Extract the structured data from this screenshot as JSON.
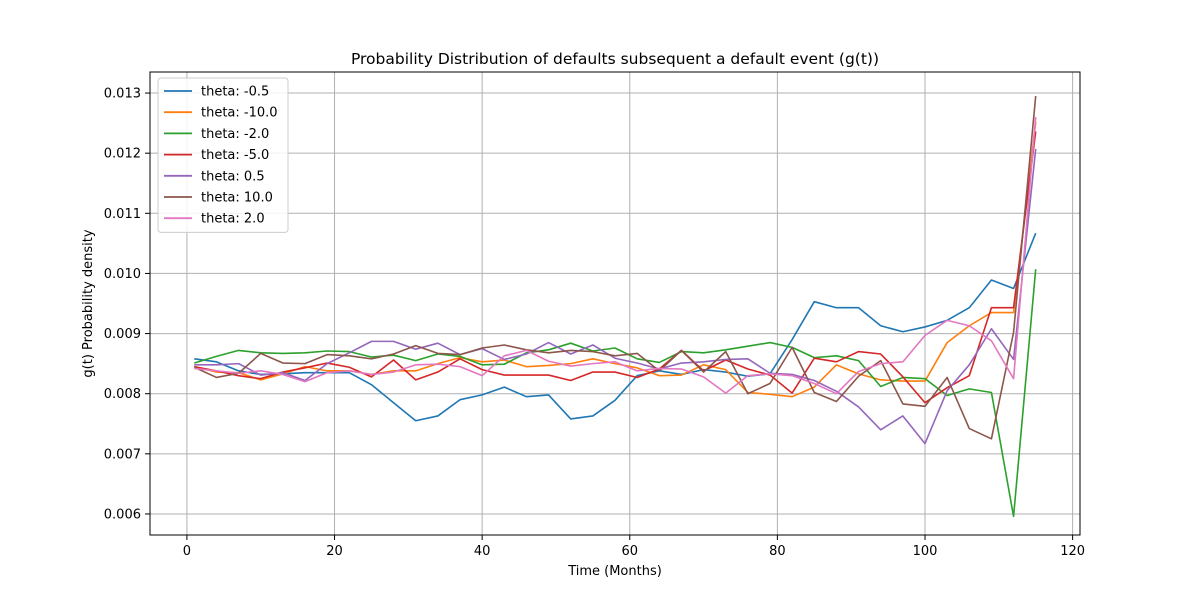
{
  "chart_data": {
    "type": "line",
    "title": "Probability Distribution of defaults subsequent a default event (g(t))",
    "xlabel": "Time (Months)",
    "ylabel": "g(t) Probability density",
    "xlim": [
      -5,
      121
    ],
    "ylim": [
      0.00565,
      0.01335
    ],
    "xticks": [
      0,
      20,
      40,
      60,
      80,
      100,
      120
    ],
    "yticks": [
      0.006,
      0.007,
      0.008,
      0.009,
      0.01,
      0.011,
      0.012,
      0.013
    ],
    "xtick_labels": [
      "0",
      "20",
      "40",
      "60",
      "80",
      "100",
      "120"
    ],
    "ytick_labels": [
      "0.006",
      "0.007",
      "0.008",
      "0.009",
      "0.010",
      "0.011",
      "0.012",
      "0.013"
    ],
    "grid": true,
    "legend_position": "top-left",
    "x": [
      1,
      4,
      7,
      10,
      13,
      16,
      19,
      22,
      25,
      28,
      31,
      34,
      37,
      40,
      43,
      46,
      49,
      52,
      55,
      58,
      61,
      64,
      67,
      70,
      73,
      76,
      79,
      82,
      85,
      88,
      91,
      94,
      97,
      100,
      103,
      106,
      109,
      112,
      115
    ],
    "series": [
      {
        "name": "theta: -0.5",
        "color": "#1f77b4",
        "values": [
          0.00858,
          0.00853,
          0.00838,
          0.00832,
          0.00833,
          0.00835,
          0.00835,
          0.00835,
          0.00815,
          0.00785,
          0.00755,
          0.00763,
          0.0079,
          0.00798,
          0.00811,
          0.00795,
          0.00798,
          0.00758,
          0.00763,
          0.00789,
          0.0083,
          0.00838,
          0.00832,
          0.0084,
          0.00836,
          0.00829,
          0.00833,
          0.0089,
          0.00953,
          0.00943,
          0.00943,
          0.00913,
          0.00903,
          0.00911,
          0.00922,
          0.00943,
          0.00989,
          0.00975,
          0.01067
        ]
      },
      {
        "name": "theta: -10.0",
        "color": "#ff7f0e",
        "values": [
          0.00845,
          0.00836,
          0.00835,
          0.00823,
          0.00833,
          0.00845,
          0.00838,
          0.00838,
          0.00832,
          0.00838,
          0.00838,
          0.0085,
          0.0086,
          0.00853,
          0.00856,
          0.00845,
          0.00847,
          0.0085,
          0.00858,
          0.0085,
          0.00843,
          0.0083,
          0.00831,
          0.00848,
          0.0084,
          0.00802,
          0.00799,
          0.00795,
          0.00811,
          0.00848,
          0.00833,
          0.00823,
          0.00821,
          0.00821,
          0.00885,
          0.00913,
          0.00935,
          0.00935,
          0.01252
        ]
      },
      {
        "name": "theta: -2.0",
        "color": "#2ca02c",
        "values": [
          0.00851,
          0.00862,
          0.00872,
          0.00868,
          0.00867,
          0.00868,
          0.00871,
          0.0087,
          0.00861,
          0.00864,
          0.00855,
          0.00866,
          0.00862,
          0.00848,
          0.00849,
          0.00868,
          0.00873,
          0.00884,
          0.00871,
          0.00876,
          0.00858,
          0.00852,
          0.0087,
          0.00868,
          0.00873,
          0.00879,
          0.00885,
          0.00877,
          0.0086,
          0.00863,
          0.00855,
          0.00812,
          0.00827,
          0.00825,
          0.00797,
          0.00808,
          0.00802,
          0.00596,
          0.01007
        ]
      },
      {
        "name": "theta: -5.0",
        "color": "#d62728",
        "values": [
          0.00845,
          0.00838,
          0.0083,
          0.00825,
          0.00836,
          0.00843,
          0.00851,
          0.00844,
          0.00828,
          0.00856,
          0.00823,
          0.00836,
          0.00858,
          0.0084,
          0.00831,
          0.00831,
          0.00831,
          0.00822,
          0.00836,
          0.00836,
          0.00827,
          0.00841,
          0.00872,
          0.00838,
          0.00856,
          0.00841,
          0.00831,
          0.00801,
          0.00859,
          0.00853,
          0.0087,
          0.00866,
          0.00828,
          0.00785,
          0.0081,
          0.0083,
          0.00943,
          0.00943,
          0.01236
        ]
      },
      {
        "name": "theta: 0.5",
        "color": "#9467bd",
        "values": [
          0.00848,
          0.00848,
          0.0085,
          0.00831,
          0.00835,
          0.00822,
          0.0085,
          0.00868,
          0.00887,
          0.00887,
          0.00874,
          0.00884,
          0.00865,
          0.00875,
          0.00857,
          0.00866,
          0.00885,
          0.00866,
          0.00881,
          0.00859,
          0.00851,
          0.00841,
          0.00851,
          0.00853,
          0.00857,
          0.00858,
          0.00834,
          0.00832,
          0.00822,
          0.00804,
          0.00778,
          0.0074,
          0.00763,
          0.00717,
          0.00805,
          0.00848,
          0.00908,
          0.00857,
          0.01207
        ]
      },
      {
        "name": "theta: 10.0",
        "color": "#8c564b",
        "values": [
          0.00844,
          0.00827,
          0.00834,
          0.00867,
          0.00851,
          0.0085,
          0.00865,
          0.00863,
          0.00858,
          0.00866,
          0.0088,
          0.00867,
          0.00865,
          0.00876,
          0.00881,
          0.00873,
          0.00868,
          0.00872,
          0.0087,
          0.00863,
          0.00867,
          0.00838,
          0.00872,
          0.00836,
          0.0087,
          0.008,
          0.00817,
          0.00877,
          0.00802,
          0.00787,
          0.00829,
          0.00855,
          0.00783,
          0.00779,
          0.00827,
          0.00742,
          0.00725,
          0.00902,
          0.01295
        ]
      },
      {
        "name": "theta: 2.0",
        "color": "#e377c2",
        "values": [
          0.00842,
          0.00838,
          0.00834,
          0.00838,
          0.00832,
          0.0082,
          0.00835,
          0.00838,
          0.00832,
          0.00836,
          0.00848,
          0.00849,
          0.00845,
          0.0083,
          0.00863,
          0.00872,
          0.00854,
          0.00846,
          0.0085,
          0.00853,
          0.00838,
          0.00842,
          0.00841,
          0.00828,
          0.00801,
          0.0083,
          0.00833,
          0.0083,
          0.00817,
          0.008,
          0.00837,
          0.0085,
          0.00853,
          0.00897,
          0.00922,
          0.00913,
          0.00888,
          0.00825,
          0.0126
        ]
      }
    ]
  }
}
